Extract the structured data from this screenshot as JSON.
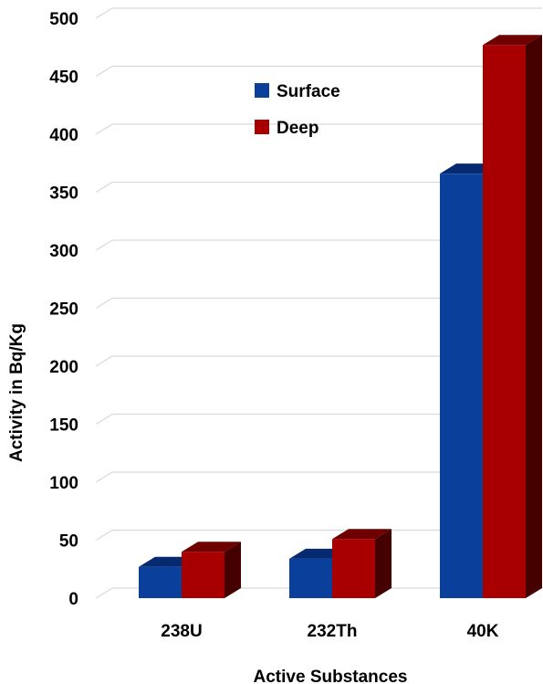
{
  "chart_data": {
    "type": "bar",
    "style": "3d-clustered-column",
    "categories": [
      "238U",
      "232Th",
      "40K"
    ],
    "series": [
      {
        "name": "Surface",
        "values": [
          27,
          34,
          366
        ],
        "color": "#0a3f9c",
        "top_color": "#062a70",
        "side_color": "#041a4a"
      },
      {
        "name": "Deep",
        "values": [
          40,
          51,
          477
        ],
        "color": "#a80000",
        "top_color": "#6e0000",
        "side_color": "#450000"
      }
    ],
    "xlabel": "Active Substances",
    "ylabel": "Activity in Bq/Kg",
    "ylim": [
      0,
      500
    ],
    "yticks": [
      0,
      50,
      100,
      150,
      200,
      250,
      300,
      350,
      400,
      450,
      500
    ],
    "grid": true,
    "legend_position": "top-center"
  }
}
